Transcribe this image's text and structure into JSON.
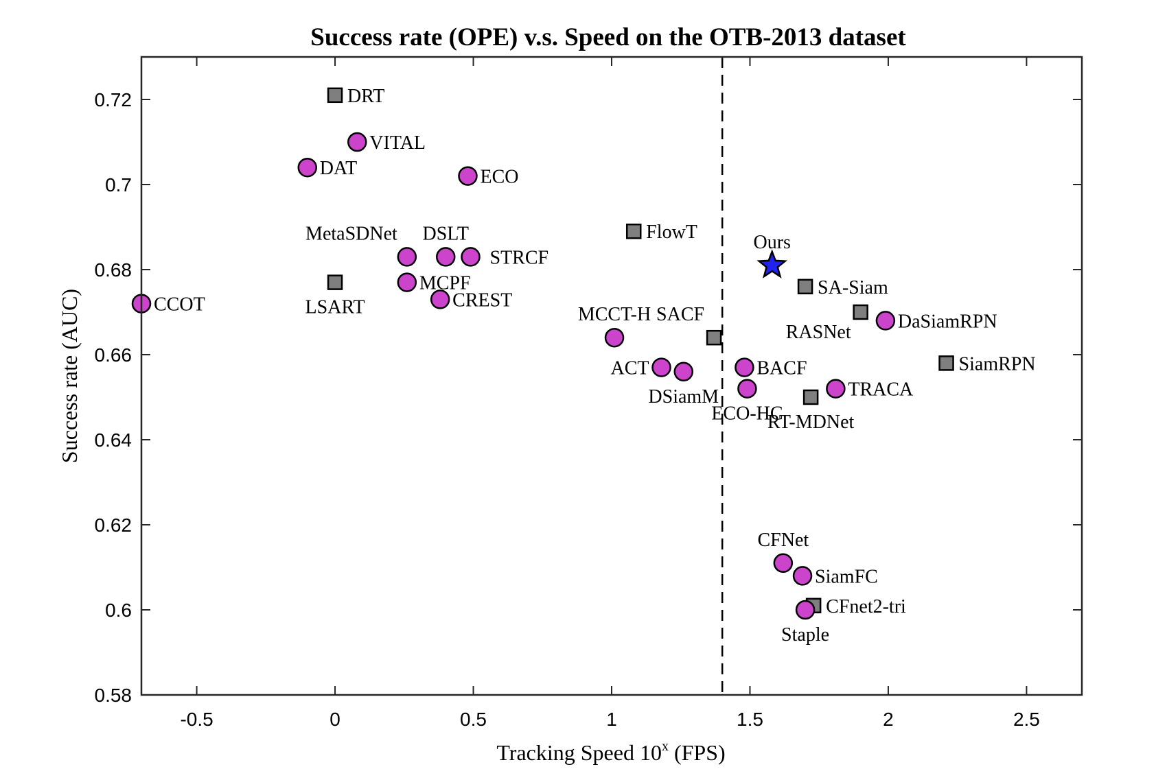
{
  "chart_data": {
    "type": "scatter",
    "title": "Success rate (OPE) v.s. Speed on the OTB-2013 dataset",
    "xlabel": "Tracking Speed 10",
    "xlabel_sup": "x",
    "xlabel_suffix": " (FPS)",
    "ylabel": "Success rate (AUC)",
    "xlim": [
      -0.7,
      2.7
    ],
    "ylim": [
      0.58,
      0.73
    ],
    "xticks": [
      -0.5,
      0,
      0.5,
      1,
      1.5,
      2,
      2.5
    ],
    "xtick_labels": [
      "-0.5",
      "0",
      "0.5",
      "1",
      "1.5",
      "2",
      "2.5"
    ],
    "yticks": [
      0.58,
      0.6,
      0.62,
      0.64,
      0.66,
      0.68,
      0.7,
      0.72
    ],
    "ytick_labels": [
      "0.58",
      "0.6",
      "0.62",
      "0.64",
      "0.66",
      "0.68",
      "0.7",
      "0.72"
    ],
    "reference_line_x": 1.4,
    "grid": false,
    "colors": {
      "circle_fill": "#cc44cc",
      "square_fill": "#7f7f7f",
      "star_fill": "#2222ee",
      "marker_edge": "#000000"
    },
    "points": [
      {
        "name": "DRT",
        "x": 0.0,
        "y": 0.721,
        "marker": "square",
        "label_pos": "right"
      },
      {
        "name": "VITAL",
        "x": 0.08,
        "y": 0.71,
        "marker": "circle",
        "label_pos": "right"
      },
      {
        "name": "DAT",
        "x": -0.1,
        "y": 0.704,
        "marker": "circle",
        "label_pos": "right"
      },
      {
        "name": "ECO",
        "x": 0.48,
        "y": 0.702,
        "marker": "circle",
        "label_pos": "right"
      },
      {
        "name": "MetaSDNet",
        "x": 0.26,
        "y": 0.683,
        "marker": "circle",
        "label_pos": "above-left"
      },
      {
        "name": "DSLT",
        "x": 0.4,
        "y": 0.683,
        "marker": "circle",
        "label_pos": "above"
      },
      {
        "name": "STRCF",
        "x": 0.49,
        "y": 0.683,
        "marker": "circle",
        "label_pos": "right-far"
      },
      {
        "name": "MCPF",
        "x": 0.26,
        "y": 0.677,
        "marker": "circle",
        "label_pos": "right"
      },
      {
        "name": "LSART",
        "x": 0.0,
        "y": 0.677,
        "marker": "square",
        "label_pos": "below"
      },
      {
        "name": "CREST",
        "x": 0.38,
        "y": 0.673,
        "marker": "circle",
        "label_pos": "right"
      },
      {
        "name": "CCOT",
        "x": -0.7,
        "y": 0.672,
        "marker": "circle",
        "label_pos": "right"
      },
      {
        "name": "FlowT",
        "x": 1.08,
        "y": 0.689,
        "marker": "square",
        "label_pos": "right"
      },
      {
        "name": "MCCT-H",
        "x": 1.01,
        "y": 0.664,
        "marker": "circle",
        "label_pos": "above"
      },
      {
        "name": "SACF",
        "x": 1.37,
        "y": 0.664,
        "marker": "square",
        "label_pos": "above-left"
      },
      {
        "name": "ACT",
        "x": 1.18,
        "y": 0.657,
        "marker": "circle",
        "label_pos": "left"
      },
      {
        "name": "DSiamM",
        "x": 1.26,
        "y": 0.656,
        "marker": "circle",
        "label_pos": "below"
      },
      {
        "name": "BACF",
        "x": 1.48,
        "y": 0.657,
        "marker": "circle",
        "label_pos": "right"
      },
      {
        "name": "ECO-HC",
        "x": 1.49,
        "y": 0.652,
        "marker": "circle",
        "label_pos": "below"
      },
      {
        "name": "Ours",
        "x": 1.58,
        "y": 0.681,
        "marker": "star",
        "label_pos": "above"
      },
      {
        "name": "SA-Siam",
        "x": 1.7,
        "y": 0.676,
        "marker": "square",
        "label_pos": "right"
      },
      {
        "name": "RASNet",
        "x": 1.9,
        "y": 0.67,
        "marker": "square",
        "label_pos": "below-left"
      },
      {
        "name": "DaSiamRPN",
        "x": 1.99,
        "y": 0.668,
        "marker": "circle",
        "label_pos": "right"
      },
      {
        "name": "SiamRPN",
        "x": 2.21,
        "y": 0.658,
        "marker": "square",
        "label_pos": "right"
      },
      {
        "name": "TRACA",
        "x": 1.81,
        "y": 0.652,
        "marker": "circle",
        "label_pos": "right"
      },
      {
        "name": "RT-MDNet",
        "x": 1.72,
        "y": 0.65,
        "marker": "square",
        "label_pos": "below"
      },
      {
        "name": "CFNet",
        "x": 1.62,
        "y": 0.611,
        "marker": "circle",
        "label_pos": "above"
      },
      {
        "name": "SiamFC",
        "x": 1.69,
        "y": 0.608,
        "marker": "circle",
        "label_pos": "right"
      },
      {
        "name": "CFnet2-tri",
        "x": 1.73,
        "y": 0.601,
        "marker": "square",
        "label_pos": "right"
      },
      {
        "name": "Staple",
        "x": 1.7,
        "y": 0.6,
        "marker": "circle",
        "label_pos": "below"
      }
    ]
  }
}
